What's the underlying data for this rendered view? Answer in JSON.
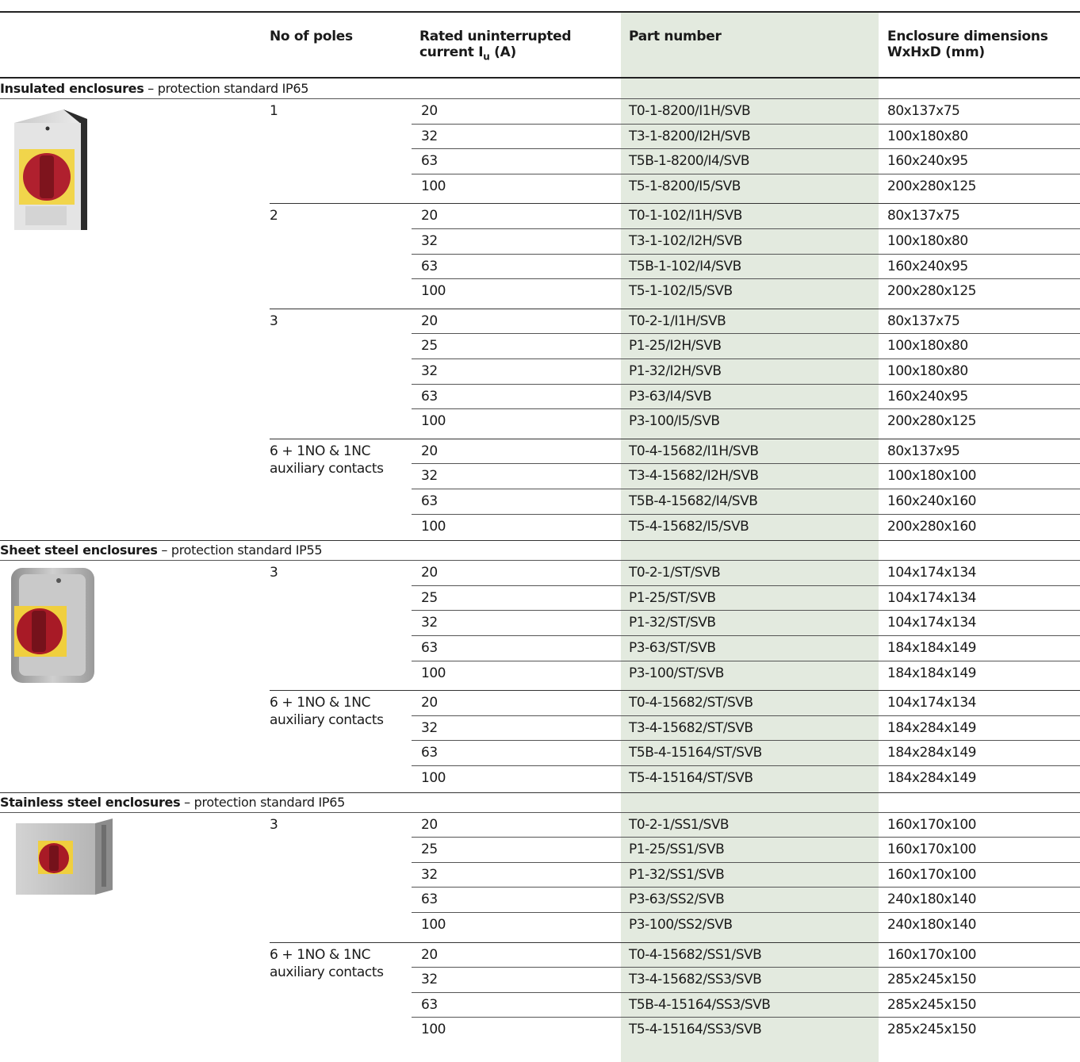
{
  "header": {
    "col_poles": "No of poles",
    "col_current_line1": "Rated uninterrupted",
    "col_current_line2a": "current I",
    "col_current_sub": "u",
    "col_current_line2b": " (A)",
    "col_part": "Part number",
    "col_dims_line1": "Enclosure dimensions",
    "col_dims_line2": "WxHxD (mm)"
  },
  "sections": [
    {
      "title_bold": "Insulated enclosures",
      "title_rest": " – protection standard IP65",
      "image_name": "insulated-enclosure-image",
      "groups": [
        {
          "poles": "1",
          "rows": [
            {
              "current": "20",
              "part": "T0-1-8200/I1H/SVB",
              "dims": "80x137x75"
            },
            {
              "current": "32",
              "part": "T3-1-8200/I2H/SVB",
              "dims": "100x180x80"
            },
            {
              "current": "63",
              "part": "T5B-1-8200/I4/SVB",
              "dims": "160x240x95"
            },
            {
              "current": "100",
              "part": "T5-1-8200/I5/SVB",
              "dims": "200x280x125"
            }
          ]
        },
        {
          "poles": "2",
          "rows": [
            {
              "current": "20",
              "part": "T0-1-102/I1H/SVB",
              "dims": "80x137x75"
            },
            {
              "current": "32",
              "part": "T3-1-102/I2H/SVB",
              "dims": "100x180x80"
            },
            {
              "current": "63",
              "part": "T5B-1-102/I4/SVB",
              "dims": "160x240x95"
            },
            {
              "current": "100",
              "part": "T5-1-102/I5/SVB",
              "dims": "200x280x125"
            }
          ]
        },
        {
          "poles": "3",
          "rows": [
            {
              "current": "20",
              "part": "T0-2-1/I1H/SVB",
              "dims": "80x137x75"
            },
            {
              "current": "25",
              "part": "P1-25/I2H/SVB",
              "dims": "100x180x80"
            },
            {
              "current": "32",
              "part": "P1-32/I2H/SVB",
              "dims": "100x180x80"
            },
            {
              "current": "63",
              "part": "P3-63/I4/SVB",
              "dims": "160x240x95"
            },
            {
              "current": "100",
              "part": "P3-100/I5/SVB",
              "dims": "200x280x125"
            }
          ]
        },
        {
          "poles": "6 + 1NO & 1NC",
          "poles2": "auxiliary contacts",
          "rows": [
            {
              "current": "20",
              "part": "T0-4-15682/I1H/SVB",
              "dims": "80x137x95"
            },
            {
              "current": "32",
              "part": "T3-4-15682/I2H/SVB",
              "dims": "100x180x100"
            },
            {
              "current": "63",
              "part": "T5B-4-15682/I4/SVB",
              "dims": "160x240x160"
            },
            {
              "current": "100",
              "part": "T5-4-15682/I5/SVB",
              "dims": "200x280x160"
            }
          ]
        }
      ]
    },
    {
      "title_bold": "Sheet steel enclosures",
      "title_rest": " – protection standard IP55",
      "image_name": "sheet-steel-enclosure-image",
      "groups": [
        {
          "poles": "3",
          "rows": [
            {
              "current": "20",
              "part": "T0-2-1/ST/SVB",
              "dims": "104x174x134"
            },
            {
              "current": "25",
              "part": "P1-25/ST/SVB",
              "dims": "104x174x134"
            },
            {
              "current": "32",
              "part": "P1-32/ST/SVB",
              "dims": "104x174x134"
            },
            {
              "current": "63",
              "part": "P3-63/ST/SVB",
              "dims": "184x184x149"
            },
            {
              "current": "100",
              "part": "P3-100/ST/SVB",
              "dims": "184x184x149"
            }
          ]
        },
        {
          "poles": "6 + 1NO & 1NC",
          "poles2": "auxiliary contacts",
          "rows": [
            {
              "current": "20",
              "part": "T0-4-15682/ST/SVB",
              "dims": "104x174x134"
            },
            {
              "current": "32",
              "part": "T3-4-15682/ST/SVB",
              "dims": "184x284x149"
            },
            {
              "current": "63",
              "part": "T5B-4-15164/ST/SVB",
              "dims": "184x284x149"
            },
            {
              "current": "100",
              "part": "T5-4-15164/ST/SVB",
              "dims": "184x284x149"
            }
          ]
        }
      ]
    },
    {
      "title_bold": "Stainless steel enclosures",
      "title_rest": " – protection standard IP65",
      "image_name": "stainless-steel-enclosure-image",
      "groups": [
        {
          "poles": "3",
          "rows": [
            {
              "current": "20",
              "part": "T0-2-1/SS1/SVB",
              "dims": "160x170x100"
            },
            {
              "current": "25",
              "part": "P1-25/SS1/SVB",
              "dims": "160x170x100"
            },
            {
              "current": "32",
              "part": "P1-32/SS1/SVB",
              "dims": "160x170x100"
            },
            {
              "current": "63",
              "part": "P3-63/SS2/SVB",
              "dims": "240x180x140"
            },
            {
              "current": "100",
              "part": "P3-100/SS2/SVB",
              "dims": "240x180x140"
            }
          ]
        },
        {
          "poles": "6 + 1NO & 1NC",
          "poles2": "auxiliary contacts",
          "rows": [
            {
              "current": "20",
              "part": "T0-4-15682/SS1/SVB",
              "dims": "160x170x100"
            },
            {
              "current": "32",
              "part": "T3-4-15682/SS3/SVB",
              "dims": "285x245x150"
            },
            {
              "current": "63",
              "part": "T5B-4-15164/SS3/SVB",
              "dims": "285x245x150"
            },
            {
              "current": "100",
              "part": "T5-4-15164/SS3/SVB",
              "dims": "285x245x150"
            }
          ]
        }
      ]
    }
  ]
}
